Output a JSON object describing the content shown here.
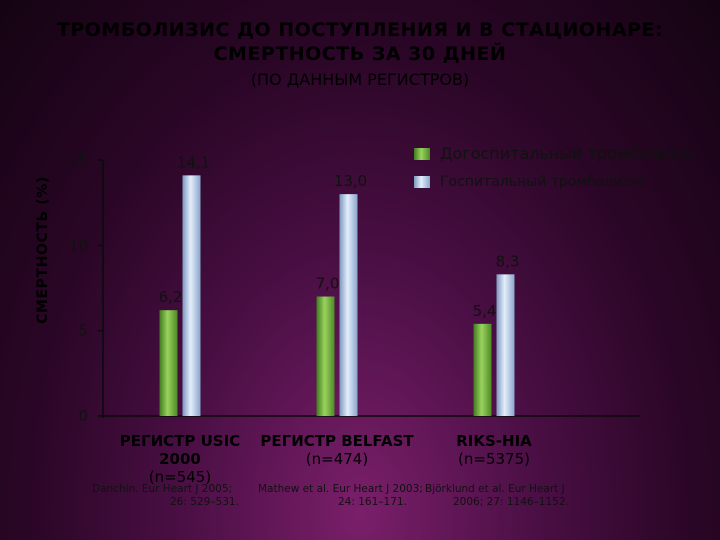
{
  "slide": {
    "title_line1": "ТРОМБОЛИЗИС ДО ПОСТУПЛЕНИЯ И В СТАЦИОНАРЕ:",
    "title_line2": "СМЕРТНОСТЬ ЗА 30 ДНЕЙ",
    "subtitle": "(ПО ДАННЫМ РЕГИСТРОВ)"
  },
  "chart_data": {
    "type": "bar",
    "ylabel": "СМЕРТНОСТЬ (%)",
    "ylim": [
      0,
      15
    ],
    "yticks": [
      0,
      5,
      10,
      15
    ],
    "grid": false,
    "legend_position": "top-right",
    "categories": [
      {
        "name": "РЕГИСТР USIC",
        "sub": "2000",
        "n": "(n=545)"
      },
      {
        "name": "РЕГИСТР BELFAST",
        "sub": "",
        "n": "(n=474)"
      },
      {
        "name": "RIKS-HIA",
        "sub": "",
        "n": "(n=5375)"
      }
    ],
    "series": [
      {
        "name": "Догоспитальный тромболизис",
        "color": "#6aa23c",
        "values": [
          6.2,
          7.0,
          5.4
        ],
        "labels": [
          "6,2",
          "7,0",
          "5,4"
        ]
      },
      {
        "name": "Госпитальный тромболизис",
        "color": "#a9c4e6",
        "values": [
          14.1,
          13.0,
          8.3
        ],
        "labels": [
          "14,1",
          "13,0",
          "8,3"
        ]
      }
    ]
  },
  "citations": {
    "c1_line1": "Danchin. Eur Heart J 2005;",
    "c1_line2": "26: 529–531.",
    "c2_line1": "Mathew et al. Eur Heart J 2003;",
    "c2_line2": "24: 161–171.",
    "c3_line1": "Björklund et al. Eur Heart J",
    "c3_line2": "2006; 27: 1146–1152."
  }
}
